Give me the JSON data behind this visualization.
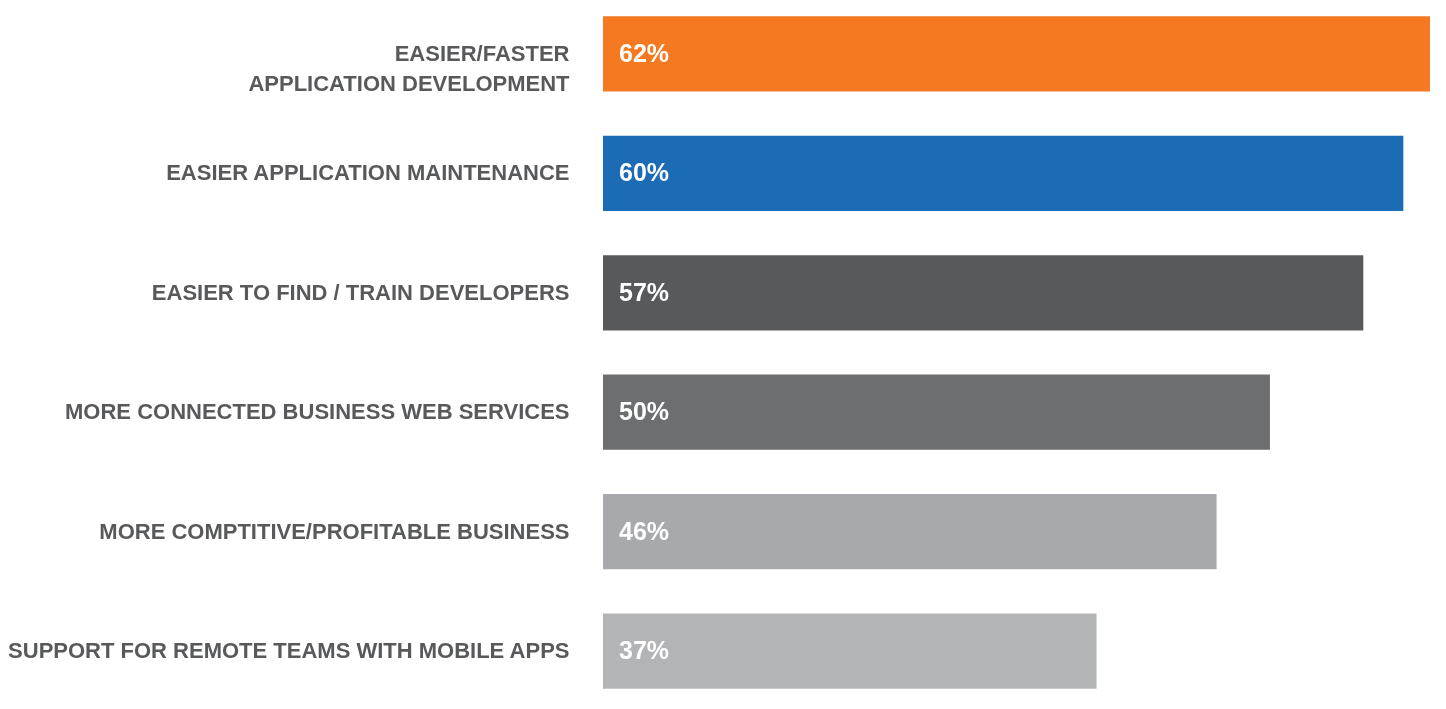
{
  "chart_data": {
    "type": "bar",
    "orientation": "horizontal",
    "categories": [
      "EASIER/FASTER\nAPPLICATION DEVELOPMENT",
      "EASIER APPLICATION MAINTENANCE",
      "EASIER TO FIND / TRAIN DEVELOPERS",
      "MORE CONNECTED BUSINESS WEB SERVICES",
      "MORE COMPTITIVE/PROFITABLE BUSINESS",
      "SUPPORT FOR REMOTE TEAMS WITH MOBILE APPS"
    ],
    "values": [
      62,
      60,
      57,
      50,
      46,
      37
    ],
    "colors": [
      "#f47920",
      "#1b6bb5",
      "#58595b",
      "#6d6e70",
      "#a7a9ac",
      "#b3b4b6"
    ],
    "value_labels": [
      "62%",
      "60%",
      "57%",
      "50%",
      "46%",
      "37%"
    ],
    "xlim": [
      0,
      62
    ]
  }
}
